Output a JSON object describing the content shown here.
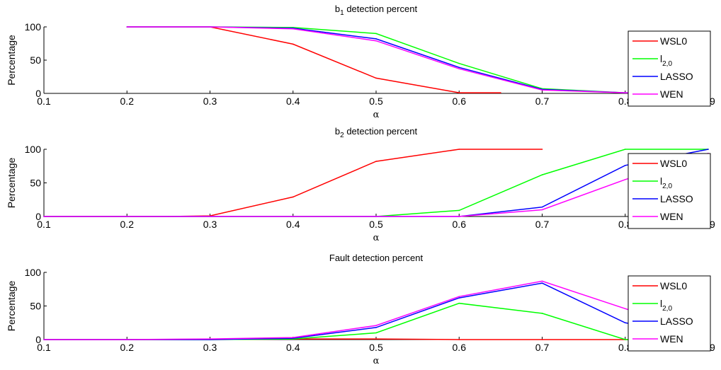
{
  "chart_data": [
    {
      "type": "line",
      "title_main": "b",
      "title_sub": "1",
      "title_rest": " detection percent",
      "xlabel": "α",
      "ylabel": "Percentage",
      "xlim": [
        0.1,
        0.9
      ],
      "ylim": [
        0,
        100
      ],
      "xticks": [
        "0.1",
        "0.2",
        "0.3",
        "0.4",
        "0.5",
        "0.6",
        "0.7",
        "0.8",
        "0.9"
      ],
      "yticks": [
        "0",
        "50",
        "100"
      ],
      "legend_position": "right",
      "series": [
        {
          "name": "WSL0",
          "color": "#ff0000",
          "x": [
            0.2,
            0.3,
            0.4,
            0.5,
            0.6,
            0.65
          ],
          "y": [
            100,
            100,
            74,
            23,
            1,
            1
          ]
        },
        {
          "name": "l2,0",
          "name_main": "l",
          "name_sub": "2,0",
          "color": "#00ff00",
          "x": [
            0.2,
            0.3,
            0.4,
            0.5,
            0.6,
            0.7,
            0.8,
            0.9
          ],
          "y": [
            100,
            100,
            99,
            90,
            45,
            7,
            1,
            0
          ]
        },
        {
          "name": "LASSO",
          "color": "#0000ff",
          "x": [
            0.2,
            0.3,
            0.4,
            0.5,
            0.6,
            0.7,
            0.8,
            0.9
          ],
          "y": [
            100,
            100,
            98,
            82,
            39,
            6,
            1,
            0
          ]
        },
        {
          "name": "WEN",
          "color": "#ff00ff",
          "x": [
            0.2,
            0.3,
            0.4,
            0.5,
            0.6,
            0.7,
            0.8,
            0.9
          ],
          "y": [
            100,
            100,
            97,
            79,
            37,
            5,
            1,
            0
          ]
        }
      ]
    },
    {
      "type": "line",
      "title_main": "b",
      "title_sub": "2",
      "title_rest": " detection percent",
      "xlabel": "α",
      "ylabel": "Percentage",
      "xlim": [
        0.1,
        0.9
      ],
      "ylim": [
        0,
        100
      ],
      "xticks": [
        "0.1",
        "0.2",
        "0.3",
        "0.4",
        "0.5",
        "0.6",
        "0.7",
        "0.8",
        "0.9"
      ],
      "yticks": [
        "0",
        "50",
        "100"
      ],
      "legend_position": "right",
      "series": [
        {
          "name": "WSL0",
          "color": "#ff0000",
          "x": [
            0.1,
            0.2,
            0.25,
            0.3,
            0.4,
            0.5,
            0.6,
            0.7
          ],
          "y": [
            0,
            0,
            0,
            1,
            29,
            82,
            100,
            100
          ]
        },
        {
          "name": "l2,0",
          "name_main": "l",
          "name_sub": "2,0",
          "color": "#00ff00",
          "x": [
            0.1,
            0.2,
            0.3,
            0.4,
            0.5,
            0.6,
            0.7,
            0.8,
            0.9
          ],
          "y": [
            0,
            0,
            0,
            0,
            0,
            9,
            62,
            100,
            100
          ]
        },
        {
          "name": "LASSO",
          "color": "#0000ff",
          "x": [
            0.1,
            0.2,
            0.3,
            0.4,
            0.5,
            0.6,
            0.7,
            0.8,
            0.9
          ],
          "y": [
            0,
            0,
            0,
            0,
            0,
            0,
            14,
            76,
            100
          ]
        },
        {
          "name": "WEN",
          "color": "#ff00ff",
          "x": [
            0.1,
            0.2,
            0.3,
            0.4,
            0.5,
            0.6,
            0.7,
            0.8,
            0.9
          ],
          "y": [
            0,
            0,
            0,
            0,
            0,
            0,
            10,
            55,
            94
          ]
        }
      ]
    },
    {
      "type": "line",
      "title_main": "Fault detection percent",
      "title_sub": "",
      "title_rest": "",
      "xlabel": "α",
      "ylabel": "Percentage",
      "xlim": [
        0.1,
        0.9
      ],
      "ylim": [
        0,
        100
      ],
      "xticks": [
        "0.1",
        "0.2",
        "0.3",
        "0.4",
        "0.5",
        "0.6",
        "0.7",
        "0.8",
        "0.9"
      ],
      "yticks": [
        "0",
        "50",
        "100"
      ],
      "legend_position": "right",
      "series": [
        {
          "name": "WSL0",
          "color": "#ff0000",
          "x": [
            0.1,
            0.2,
            0.3,
            0.4,
            0.5,
            0.6,
            0.7,
            0.8,
            0.9
          ],
          "y": [
            0,
            0,
            0,
            1,
            1,
            0,
            0,
            0,
            0
          ]
        },
        {
          "name": "l2,0",
          "name_main": "l",
          "name_sub": "2,0",
          "color": "#00ff00",
          "x": [
            0.1,
            0.2,
            0.3,
            0.4,
            0.5,
            0.6,
            0.7,
            0.8,
            0.9
          ],
          "y": [
            0,
            0,
            0,
            1,
            10,
            54,
            39,
            0,
            0
          ]
        },
        {
          "name": "LASSO",
          "color": "#0000ff",
          "x": [
            0.1,
            0.2,
            0.3,
            0.4,
            0.5,
            0.6,
            0.7,
            0.8,
            0.9
          ],
          "y": [
            0,
            0,
            0,
            2,
            18,
            62,
            84,
            25,
            4
          ]
        },
        {
          "name": "WEN",
          "color": "#ff00ff",
          "x": [
            0.1,
            0.2,
            0.3,
            0.4,
            0.5,
            0.6,
            0.7,
            0.8,
            0.9
          ],
          "y": [
            0,
            0,
            1,
            3,
            21,
            64,
            87,
            46,
            7
          ]
        }
      ]
    }
  ]
}
